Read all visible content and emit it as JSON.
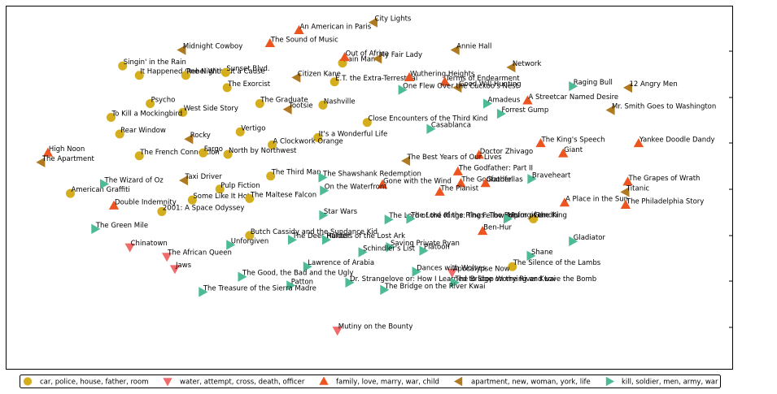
{
  "chart_data": {
    "type": "scatter",
    "title": "",
    "xlabel": "",
    "ylabel": "",
    "grid": false,
    "legend_placement": "bottom-center",
    "xlim": [
      0,
      1000
    ],
    "ylim": [
      0,
      500
    ],
    "series": [
      {
        "name": "car, police, house, father, room",
        "marker": "circle",
        "color": "#d4ae1d",
        "points": [
          {
            "x": 160,
            "y": 418,
            "label": "Singin' in the Rain"
          },
          {
            "x": 183,
            "y": 405,
            "label": "It Happened One Night"
          },
          {
            "x": 247,
            "y": 405,
            "label": "Rebel Without a Cause"
          },
          {
            "x": 302,
            "y": 409,
            "label": "Sunset Blvd."
          },
          {
            "x": 304,
            "y": 388,
            "label": "The Exorcist"
          },
          {
            "x": 463,
            "y": 422,
            "label": "Rain Man"
          },
          {
            "x": 452,
            "y": 396,
            "label": "E.T. the Extra-Terrestrial"
          },
          {
            "x": 198,
            "y": 366,
            "label": "Psycho"
          },
          {
            "x": 243,
            "y": 354,
            "label": "West Side Story"
          },
          {
            "x": 349,
            "y": 366,
            "label": "The Graduate"
          },
          {
            "x": 436,
            "y": 364,
            "label": "Nashville"
          },
          {
            "x": 144,
            "y": 347,
            "label": "To Kill a Mockingbird"
          },
          {
            "x": 156,
            "y": 324,
            "label": "Rear Window"
          },
          {
            "x": 322,
            "y": 327,
            "label": "Vertigo"
          },
          {
            "x": 497,
            "y": 340,
            "label": "Close Encounters of the Third Kind"
          },
          {
            "x": 429,
            "y": 319,
            "label": "It's a Wonderful Life"
          },
          {
            "x": 366,
            "y": 309,
            "label": "A Clockwork Orange"
          },
          {
            "x": 183,
            "y": 294,
            "label": "The French Connection"
          },
          {
            "x": 271,
            "y": 298,
            "label": "Fargo"
          },
          {
            "x": 305,
            "y": 296,
            "label": "North by Northwest"
          },
          {
            "x": 364,
            "y": 266,
            "label": "The Third Man"
          },
          {
            "x": 88,
            "y": 242,
            "label": "American Graffiti"
          },
          {
            "x": 294,
            "y": 248,
            "label": "Pulp Fiction"
          },
          {
            "x": 256,
            "y": 233,
            "label": "Some Like It Hot"
          },
          {
            "x": 335,
            "y": 235,
            "label": "The Maltese Falcon"
          },
          {
            "x": 214,
            "y": 217,
            "label": "2001: A Space Odyssey"
          },
          {
            "x": 335,
            "y": 184,
            "label": "Butch Cassidy and the Sundance Kid"
          },
          {
            "x": 726,
            "y": 207,
            "label": "Gandhi"
          },
          {
            "x": 697,
            "y": 141,
            "label": "The Silence of the Lambs"
          }
        ]
      },
      {
        "name": "water, attempt, cross, death, officer",
        "marker": "triangle-down",
        "color": "#f26b6b",
        "points": [
          {
            "x": 170,
            "y": 168,
            "label": "Chinatown"
          },
          {
            "x": 221,
            "y": 155,
            "label": "The African Queen"
          },
          {
            "x": 232,
            "y": 138,
            "label": "Jaws"
          },
          {
            "x": 614,
            "y": 133,
            "label": "Apocalypse Now"
          },
          {
            "x": 456,
            "y": 53,
            "label": "Mutiny on the Bounty"
          }
        ]
      },
      {
        "name": "family, love, marry, war, child",
        "marker": "triangle-up",
        "color": "#ec5520",
        "points": [
          {
            "x": 403,
            "y": 467,
            "label": "An American in Paris"
          },
          {
            "x": 363,
            "y": 449,
            "label": "The Sound of Music"
          },
          {
            "x": 466,
            "y": 430,
            "label": "Out of Africa"
          },
          {
            "x": 555,
            "y": 402,
            "label": "Wuthering Heights"
          },
          {
            "x": 604,
            "y": 396,
            "label": "Terms of Endearment"
          },
          {
            "x": 718,
            "y": 370,
            "label": "A Streetcar Named Desire"
          },
          {
            "x": 57,
            "y": 298,
            "label": "High Noon"
          },
          {
            "x": 736,
            "y": 311,
            "label": "The King's Speech"
          },
          {
            "x": 767,
            "y": 297,
            "label": "Giant"
          },
          {
            "x": 871,
            "y": 311,
            "label": "Yankee Doodle Dandy"
          },
          {
            "x": 651,
            "y": 295,
            "label": "Doctor Zhivago"
          },
          {
            "x": 622,
            "y": 272,
            "label": "The Godfather: Part II"
          },
          {
            "x": 626,
            "y": 256,
            "label": "The Godfather"
          },
          {
            "x": 660,
            "y": 256,
            "label": "Goodfellas"
          },
          {
            "x": 518,
            "y": 254,
            "label": "Gone with the Wind"
          },
          {
            "x": 856,
            "y": 258,
            "label": "The Grapes of Wrath"
          },
          {
            "x": 597,
            "y": 244,
            "label": "The Pianist"
          },
          {
            "x": 769,
            "y": 229,
            "label": "A Place in the Sun"
          },
          {
            "x": 853,
            "y": 226,
            "label": "The Philadelphia Story"
          },
          {
            "x": 148,
            "y": 225,
            "label": "Double Indemnity"
          },
          {
            "x": 656,
            "y": 190,
            "label": "Ben-Hur"
          }
        ]
      },
      {
        "name": "apartment, new, woman, york, life",
        "marker": "triangle-left",
        "color": "#b07a21",
        "points": [
          {
            "x": 506,
            "y": 478,
            "label": "City Lights"
          },
          {
            "x": 242,
            "y": 440,
            "label": "Midnight Cowboy"
          },
          {
            "x": 619,
            "y": 440,
            "label": "Annie Hall"
          },
          {
            "x": 512,
            "y": 428,
            "label": "My Fair Lady"
          },
          {
            "x": 696,
            "y": 416,
            "label": "Network"
          },
          {
            "x": 400,
            "y": 402,
            "label": "Citizen Kane"
          },
          {
            "x": 622,
            "y": 388,
            "label": "Good Will Hunting"
          },
          {
            "x": 857,
            "y": 388,
            "label": "12 Angry Men"
          },
          {
            "x": 388,
            "y": 358,
            "label": "Tootsie"
          },
          {
            "x": 833,
            "y": 357,
            "label": "Mr. Smith Goes to Washington"
          },
          {
            "x": 252,
            "y": 317,
            "label": "Rocky"
          },
          {
            "x": 48,
            "y": 285,
            "label": "The Apartment"
          },
          {
            "x": 551,
            "y": 287,
            "label": "The Best Years of Our Lives"
          },
          {
            "x": 245,
            "y": 260,
            "label": "Taxi Driver"
          },
          {
            "x": 853,
            "y": 244,
            "label": "Titanic"
          }
        ]
      },
      {
        "name": "kill, soldier, men, army, war",
        "marker": "triangle-right",
        "color": "#4cbb96",
        "points": [
          {
            "x": 780,
            "y": 390,
            "label": "Raging Bull"
          },
          {
            "x": 545,
            "y": 385,
            "label": "One Flew Over the Cuckoo's Nest"
          },
          {
            "x": 662,
            "y": 366,
            "label": "Amadeus"
          },
          {
            "x": 681,
            "y": 352,
            "label": "Forrest Gump"
          },
          {
            "x": 584,
            "y": 331,
            "label": "Casablanca"
          },
          {
            "x": 435,
            "y": 264,
            "label": "The Shawshank Redemption"
          },
          {
            "x": 134,
            "y": 255,
            "label": "The Wizard of Oz"
          },
          {
            "x": 723,
            "y": 262,
            "label": "Braveheart"
          },
          {
            "x": 437,
            "y": 246,
            "label": "On the Waterfront"
          },
          {
            "x": 436,
            "y": 212,
            "label": "Star Wars"
          },
          {
            "x": 526,
            "y": 206,
            "label": "The Lord of the Rings: The Fellowship"
          },
          {
            "x": 556,
            "y": 207,
            "label": "The Lord of the Rings: The Return of the King"
          },
          {
            "x": 690,
            "y": 207,
            "label": "Unforgiven"
          },
          {
            "x": 122,
            "y": 193,
            "label": "The Green Mile"
          },
          {
            "x": 393,
            "y": 178,
            "label": "The Deer Hunter"
          },
          {
            "x": 440,
            "y": 178,
            "label": "Raiders of the Lost Ark"
          },
          {
            "x": 308,
            "y": 171,
            "label": "Unforgiven"
          },
          {
            "x": 528,
            "y": 168,
            "label": "Saving Private Ryan"
          },
          {
            "x": 490,
            "y": 161,
            "label": "Schindler's List"
          },
          {
            "x": 574,
            "y": 163,
            "label": "Platoon"
          },
          {
            "x": 780,
            "y": 176,
            "label": "Gladiator"
          },
          {
            "x": 722,
            "y": 156,
            "label": "Shane"
          },
          {
            "x": 414,
            "y": 141,
            "label": "Lawrence of Arabia"
          },
          {
            "x": 564,
            "y": 134,
            "label": "Dances with Wolves"
          },
          {
            "x": 324,
            "y": 127,
            "label": "The Good, the Bad and the Ugly"
          },
          {
            "x": 472,
            "y": 119,
            "label": "Dr. Strangelove or: How I Learned to Stop Worrying and Love the Bomb"
          },
          {
            "x": 617,
            "y": 119,
            "label": "The Bridge on the River Kwai"
          },
          {
            "x": 391,
            "y": 115,
            "label": "Patton"
          },
          {
            "x": 520,
            "y": 109,
            "label": "The Bridge on the River Kwai"
          },
          {
            "x": 270,
            "y": 106,
            "label": "The Treasure of the Sierra Madre"
          }
        ]
      }
    ]
  }
}
